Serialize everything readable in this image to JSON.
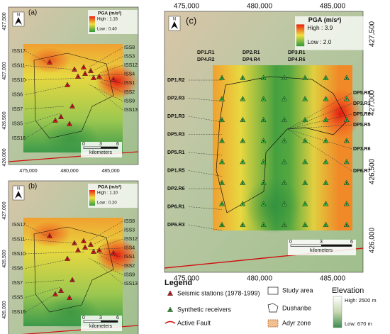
{
  "panels": [
    {
      "label": "(a)",
      "north": "N",
      "pga_title": "PGA (m/s²)",
      "high": "High : 1.16",
      "low": "Low : 0.40",
      "xticks": [
        "475,000",
        "480,000",
        "485,000"
      ],
      "yticks": [
        "427,500",
        "427,000",
        "426,500",
        "426,000"
      ],
      "left_stations": [
        "ISS17",
        "ISS11",
        "ISS10",
        "ISS6",
        "ISS7",
        "ISS5",
        "ISS16"
      ],
      "right_stations": [
        "ISS8",
        "ISS3",
        "ISS12",
        "ISS4",
        "ISS1",
        "ISS2",
        "ISS9",
        "ISS13"
      ],
      "scale": [
        "0",
        "3",
        "6"
      ],
      "scale_unit": "kilometers"
    },
    {
      "label": "(b)",
      "north": "N",
      "pga_title": "PGA (m/s²)",
      "high": "High : 1.10",
      "low": "Low : 0.20",
      "xticks": [
        "475,000",
        "480,000",
        "485,000"
      ],
      "yticks": [
        "427,000",
        "426,500",
        "426,000"
      ],
      "left_stations": [
        "ISS17",
        "ISS11",
        "ISS10",
        "ISS6",
        "ISS7",
        "ISS5",
        "ISS16"
      ],
      "right_stations": [
        "ISS8",
        "ISS3",
        "ISS12",
        "ISS4",
        "ISS1",
        "ISS2",
        "ISS9",
        "ISS13"
      ],
      "scale": [
        "0",
        "3",
        "6"
      ],
      "scale_unit": "kilometers"
    },
    {
      "label": "(c)",
      "north": "N",
      "pga_title": "PGA (m/s²)",
      "high": "High : 3.9",
      "low": "Low : 2.0",
      "xticks": [
        "475,000",
        "480,000",
        "485,000"
      ],
      "yticks": [
        "427,500",
        "427,000",
        "426,500",
        "426,000"
      ],
      "top_receivers": [
        "DP1.R1",
        "DP4.R2",
        "DP2.R1",
        "DP4.R4",
        "DP3.R1",
        "DP4.R6"
      ],
      "left_receivers": [
        "DP1.R2",
        "DP2.R3",
        "DP1.R3",
        "DP5.R3",
        "DP5.R1",
        "DP1.R5",
        "DP2.R6",
        "DP6.R1",
        "DP6.R3"
      ],
      "right_receivers": [
        "DP5.R8",
        "DP3.R3",
        "DP5.R6",
        "DP5.R5",
        "DP3.R6",
        "DP6.R7"
      ],
      "scale": [
        "0",
        "3",
        "6"
      ],
      "scale_unit": "kilometers"
    }
  ],
  "legend": {
    "title": "Legend",
    "seismic": "Seismic stations (1978-1999)",
    "synthetic": "Synthetic receivers",
    "fault": "Active Fault",
    "study": "Study area",
    "dushanbe": "Dushanbe",
    "adyr": "Adyr zone",
    "elevation": "Elevation",
    "elev_high": "High: 2500 m",
    "elev_low": "Low: 670 m"
  }
}
